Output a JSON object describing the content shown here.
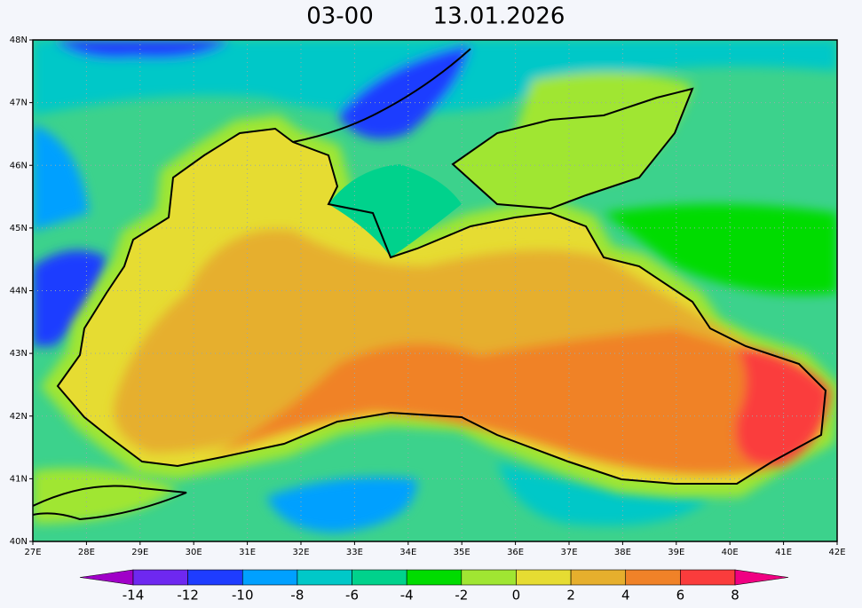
{
  "title": {
    "time": "03-00",
    "date": "13.01.2026"
  },
  "map": {
    "lat_labels": [
      "48N",
      "47N",
      "46N",
      "45N",
      "44N",
      "43N",
      "42N",
      "41N",
      "40N"
    ],
    "lon_labels": [
      "27E",
      "28E",
      "29E",
      "30E",
      "31E",
      "32E",
      "33E",
      "34E",
      "35E",
      "36E",
      "37E",
      "38E",
      "39E",
      "40E",
      "41E",
      "42E"
    ]
  },
  "colorbar": {
    "levels": [
      -14,
      -12,
      -10,
      -8,
      -6,
      -4,
      -2,
      0,
      2,
      4,
      6,
      8
    ],
    "colors": [
      "#a000c8",
      "#6e28f0",
      "#1e3cff",
      "#00a0ff",
      "#00c8c8",
      "#00d28c",
      "#00dc00",
      "#a0e632",
      "#e6dc32",
      "#e6af2d",
      "#f08228",
      "#fa3c3c",
      "#f00082"
    ]
  }
}
